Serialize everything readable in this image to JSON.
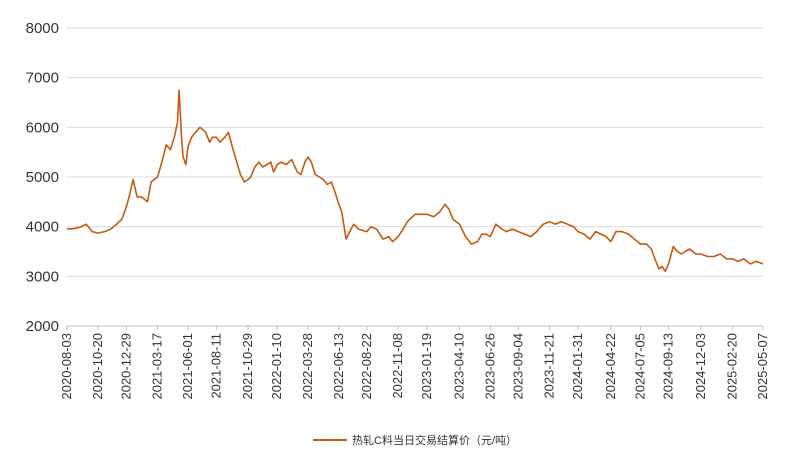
{
  "chart_data": {
    "type": "line",
    "title": "",
    "xlabel": "",
    "ylabel": "",
    "ylim": [
      2000,
      8000
    ],
    "yticks": [
      2000,
      3000,
      4000,
      5000,
      6000,
      7000,
      8000
    ],
    "xlim": [
      "2020-08-03",
      "2025-05-07"
    ],
    "xticks": [
      "2020-08-03",
      "2020-10-20",
      "2020-12-29",
      "2021-03-17",
      "2021-06-01",
      "2021-08-11",
      "2021-10-29",
      "2022-01-10",
      "2022-03-28",
      "2022-06-13",
      "2022-08-22",
      "2022-11-08",
      "2023-01-19",
      "2023-04-10",
      "2023-06-26",
      "2023-09-04",
      "2023-11-21",
      "2024-01-31",
      "2024-04-22",
      "2024-07-05",
      "2024-09-13",
      "2024-12-03",
      "2025-02-20",
      "2025-05-07"
    ],
    "grid": "horizontal",
    "legend_position": "bottom",
    "colors": {
      "series": "#c55a11",
      "grid": "#d9d9d9",
      "axis": "#bfbfbf"
    },
    "series": [
      {
        "name": "热轧C料当日交易结算价（元/吨）",
        "x": [
          "2020-08-03",
          "2020-08-20",
          "2020-09-05",
          "2020-09-20",
          "2020-10-05",
          "2020-10-20",
          "2020-11-05",
          "2020-11-20",
          "2020-12-05",
          "2020-12-18",
          "2020-12-29",
          "2021-01-05",
          "2021-01-15",
          "2021-01-25",
          "2021-02-05",
          "2021-02-20",
          "2021-03-01",
          "2021-03-17",
          "2021-03-28",
          "2021-04-08",
          "2021-04-18",
          "2021-04-28",
          "2021-05-06",
          "2021-05-10",
          "2021-05-13",
          "2021-05-16",
          "2021-05-20",
          "2021-05-27",
          "2021-06-01",
          "2021-06-10",
          "2021-06-20",
          "2021-07-01",
          "2021-07-15",
          "2021-07-25",
          "2021-08-01",
          "2021-08-11",
          "2021-08-20",
          "2021-09-01",
          "2021-09-10",
          "2021-09-20",
          "2021-10-01",
          "2021-10-10",
          "2021-10-20",
          "2021-10-29",
          "2021-11-05",
          "2021-11-15",
          "2021-11-25",
          "2021-12-05",
          "2021-12-15",
          "2021-12-25",
          "2022-01-01",
          "2022-01-10",
          "2022-01-20",
          "2022-02-01",
          "2022-02-15",
          "2022-03-01",
          "2022-03-10",
          "2022-03-20",
          "2022-03-28",
          "2022-04-05",
          "2022-04-15",
          "2022-04-25",
          "2022-05-05",
          "2022-05-15",
          "2022-05-25",
          "2022-06-01",
          "2022-06-13",
          "2022-06-20",
          "2022-07-01",
          "2022-07-10",
          "2022-07-20",
          "2022-08-01",
          "2022-08-22",
          "2022-09-01",
          "2022-09-15",
          "2022-10-01",
          "2022-10-15",
          "2022-10-25",
          "2022-11-08",
          "2022-11-20",
          "2022-12-01",
          "2022-12-20",
          "2023-01-05",
          "2023-01-19",
          "2023-02-05",
          "2023-02-20",
          "2023-03-05",
          "2023-03-15",
          "2023-03-25",
          "2023-04-10",
          "2023-04-25",
          "2023-05-10",
          "2023-05-25",
          "2023-06-05",
          "2023-06-15",
          "2023-06-26",
          "2023-07-10",
          "2023-07-25",
          "2023-08-05",
          "2023-08-20",
          "2023-09-04",
          "2023-09-20",
          "2023-10-05",
          "2023-10-20",
          "2023-11-05",
          "2023-11-21",
          "2023-12-05",
          "2023-12-20",
          "2024-01-05",
          "2024-01-20",
          "2024-01-31",
          "2024-02-15",
          "2024-03-01",
          "2024-03-15",
          "2024-03-28",
          "2024-04-10",
          "2024-04-22",
          "2024-05-05",
          "2024-05-20",
          "2024-06-05",
          "2024-06-20",
          "2024-07-05",
          "2024-07-20",
          "2024-08-01",
          "2024-08-10",
          "2024-08-20",
          "2024-08-28",
          "2024-09-05",
          "2024-09-13",
          "2024-09-25",
          "2024-10-05",
          "2024-10-15",
          "2024-10-25",
          "2024-11-05",
          "2024-11-20",
          "2024-12-03",
          "2024-12-20",
          "2025-01-05",
          "2025-01-20",
          "2025-02-05",
          "2025-02-20",
          "2025-03-05",
          "2025-03-20",
          "2025-04-05",
          "2025-04-20",
          "2025-05-07"
        ],
        "values": [
          3950,
          3960,
          3990,
          4050,
          3900,
          3870,
          3900,
          3950,
          4050,
          4150,
          4400,
          4600,
          4950,
          4600,
          4600,
          4500,
          4900,
          5000,
          5300,
          5650,
          5550,
          5800,
          6100,
          6750,
          6300,
          5800,
          5400,
          5250,
          5600,
          5800,
          5900,
          6000,
          5900,
          5700,
          5800,
          5800,
          5700,
          5800,
          5900,
          5600,
          5300,
          5050,
          4900,
          4950,
          5000,
          5200,
          5300,
          5200,
          5250,
          5300,
          5100,
          5250,
          5300,
          5250,
          5350,
          5100,
          5050,
          5300,
          5400,
          5300,
          5050,
          5000,
          4950,
          4850,
          4900,
          4750,
          4450,
          4300,
          3750,
          3900,
          4050,
          3950,
          3900,
          4000,
          3950,
          3750,
          3800,
          3700,
          3800,
          3950,
          4100,
          4250,
          4250,
          4250,
          4200,
          4300,
          4450,
          4350,
          4150,
          4050,
          3800,
          3650,
          3700,
          3850,
          3850,
          3800,
          4050,
          3950,
          3900,
          3950,
          3900,
          3850,
          3800,
          3900,
          4050,
          4100,
          4050,
          4100,
          4050,
          4000,
          3900,
          3850,
          3750,
          3900,
          3850,
          3800,
          3700,
          3900,
          3900,
          3850,
          3750,
          3650,
          3650,
          3550,
          3350,
          3150,
          3200,
          3100,
          3250,
          3600,
          3500,
          3450,
          3500,
          3550,
          3450,
          3450,
          3400,
          3400,
          3450,
          3350,
          3350,
          3300,
          3350,
          3250,
          3300,
          3250
        ]
      }
    ]
  }
}
